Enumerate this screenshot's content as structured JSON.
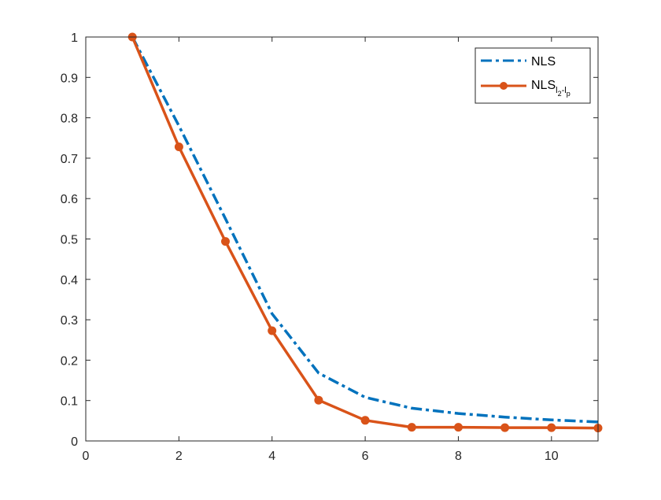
{
  "chart_data": {
    "type": "line",
    "title": "",
    "xlabel": "",
    "ylabel": "",
    "xlim": [
      0,
      11
    ],
    "ylim": [
      0,
      1
    ],
    "xticks": [
      0,
      2,
      4,
      6,
      8,
      10
    ],
    "yticks": [
      0,
      0.1,
      0.2,
      0.3,
      0.4,
      0.5,
      0.6,
      0.7,
      0.8,
      0.9,
      1
    ],
    "xtick_labels": [
      "0",
      "2",
      "4",
      "6",
      "8",
      "10"
    ],
    "ytick_labels": [
      "0",
      "0.1",
      "0.2",
      "0.3",
      "0.4",
      "0.5",
      "0.6",
      "0.7",
      "0.8",
      "0.9",
      "1"
    ],
    "grid": false,
    "legend_position": "top-right",
    "series": [
      {
        "name": "NLS",
        "legend_text": "NLS",
        "color": "#0072BD",
        "line_style": "dash-dot",
        "marker": "none",
        "x": [
          1,
          2,
          3,
          4,
          5,
          6,
          7,
          8,
          9,
          10,
          11
        ],
        "y": [
          1.0,
          0.78,
          0.55,
          0.315,
          0.168,
          0.108,
          0.081,
          0.068,
          0.059,
          0.052,
          0.047
        ]
      },
      {
        "name": "NLS_{l2-lp}",
        "legend_text": "NLS",
        "legend_subscript": "l",
        "legend_subsub1": "2",
        "legend_dash": "-l",
        "legend_subsub2": "p",
        "color": "#D95319",
        "line_style": "solid",
        "marker": "circle",
        "x": [
          1,
          2,
          3,
          4,
          5,
          6,
          7,
          8,
          9,
          10,
          11
        ],
        "y": [
          1.0,
          0.728,
          0.494,
          0.273,
          0.101,
          0.051,
          0.034,
          0.034,
          0.033,
          0.033,
          0.032
        ]
      }
    ]
  }
}
